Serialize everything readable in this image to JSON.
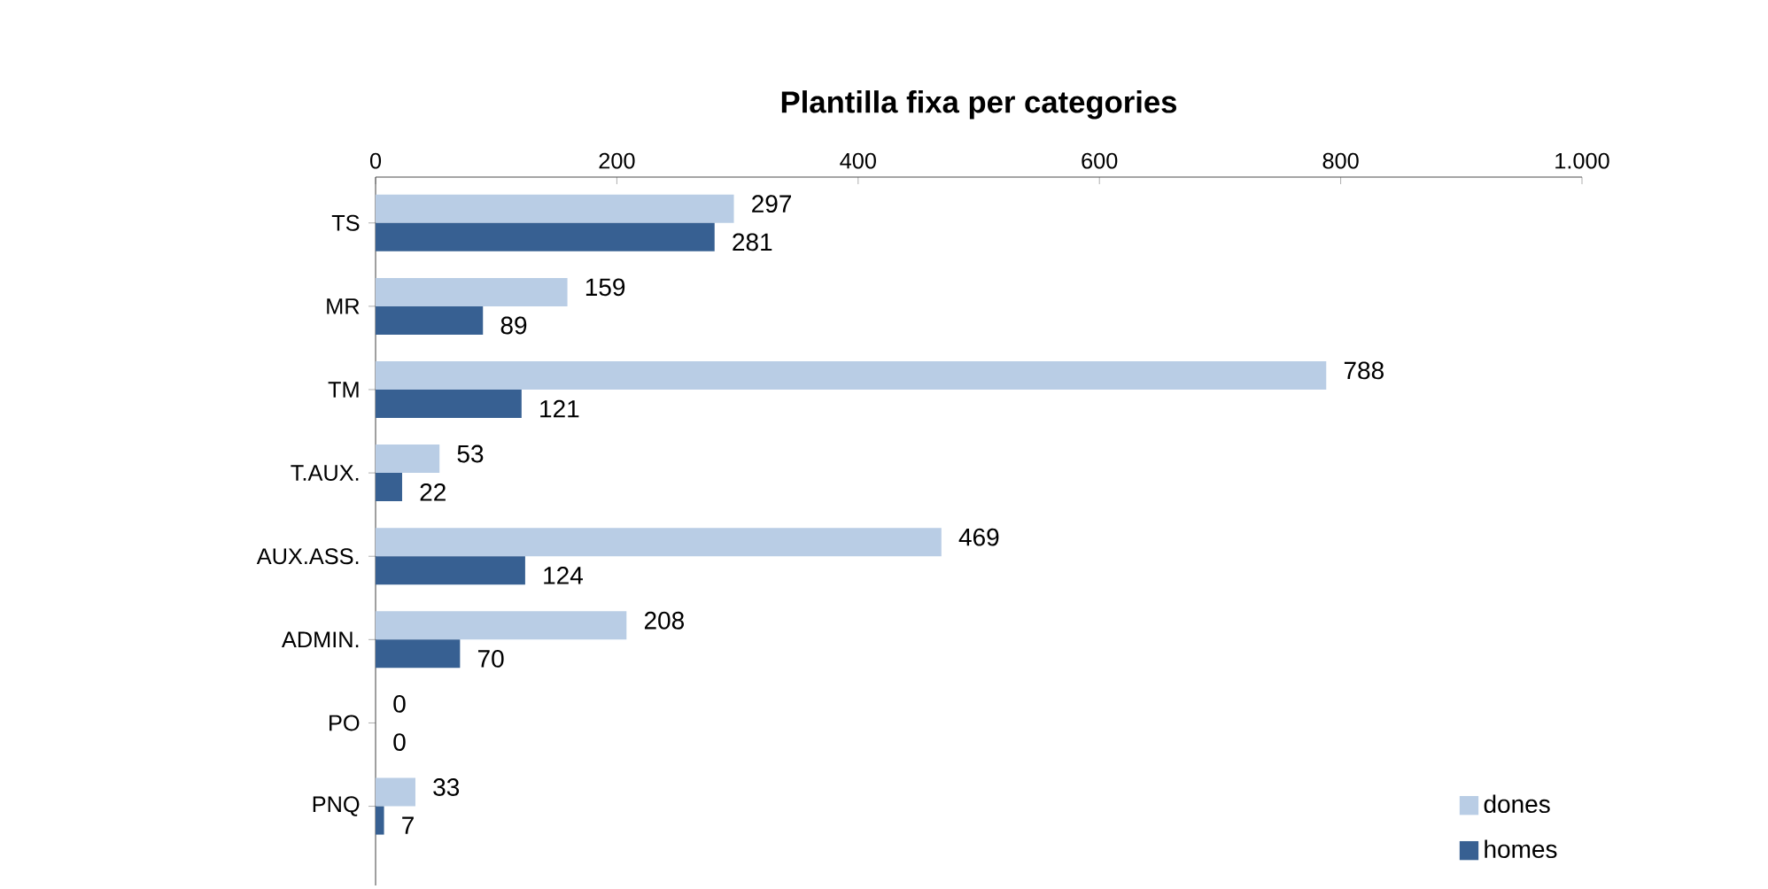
{
  "chart_data": {
    "type": "bar",
    "orientation": "horizontal",
    "title": "Plantilla fixa per categories",
    "categories": [
      "TS",
      "MR",
      "TM",
      "T.AUX.",
      "AUX.ASS.",
      "ADMIN.",
      "PO",
      "PNQ"
    ],
    "series": [
      {
        "name": "dones",
        "color": "#b9cde5",
        "values": [
          297,
          159,
          788,
          53,
          469,
          208,
          0,
          33
        ]
      },
      {
        "name": "homes",
        "color": "#376092",
        "values": [
          281,
          89,
          121,
          22,
          124,
          70,
          0,
          7
        ]
      }
    ],
    "xlim": [
      0,
      1000
    ],
    "xticks": [
      0,
      200,
      400,
      600,
      800,
      {
        "value": 1000,
        "label": "1.000"
      }
    ],
    "data_labels": true,
    "legend": "bottom right",
    "grid": false
  }
}
